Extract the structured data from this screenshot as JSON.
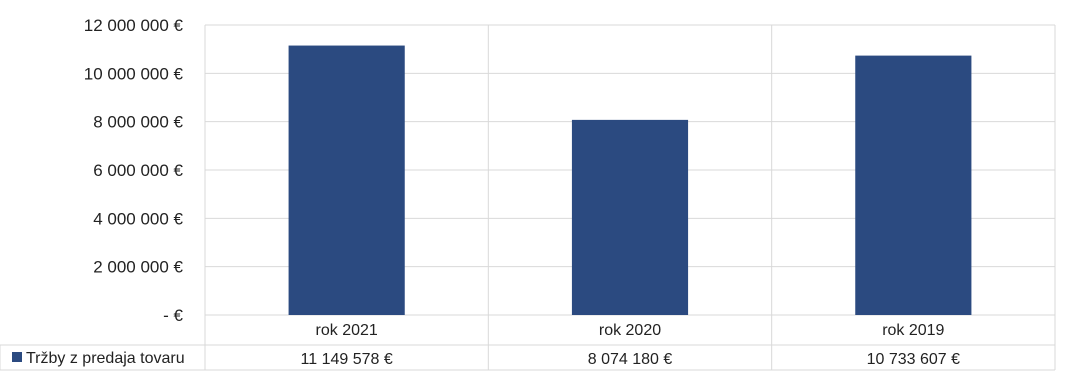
{
  "chart_data": {
    "type": "bar",
    "categories": [
      "rok 2021",
      "rok 2020",
      "rok 2019"
    ],
    "series": [
      {
        "name": "Tržby z predaja tovaru",
        "values": [
          11149578,
          8074180,
          10733607
        ],
        "value_labels": [
          "11 149 578 €",
          "8 074 180 €",
          "10 733 607 €"
        ],
        "color": "#2b4a80"
      }
    ],
    "yticks": [
      0,
      2000000,
      4000000,
      6000000,
      8000000,
      10000000,
      12000000
    ],
    "ytick_labels": [
      "- €",
      "2 000 000 €",
      "4 000 000 €",
      "6 000 000 €",
      "8 000 000 €",
      "10 000 000 €",
      "12 000 000 €"
    ],
    "ylim": [
      0,
      12000000
    ],
    "grid": true,
    "legend": "data-table-left",
    "title": "",
    "xlabel": "",
    "ylabel": ""
  }
}
